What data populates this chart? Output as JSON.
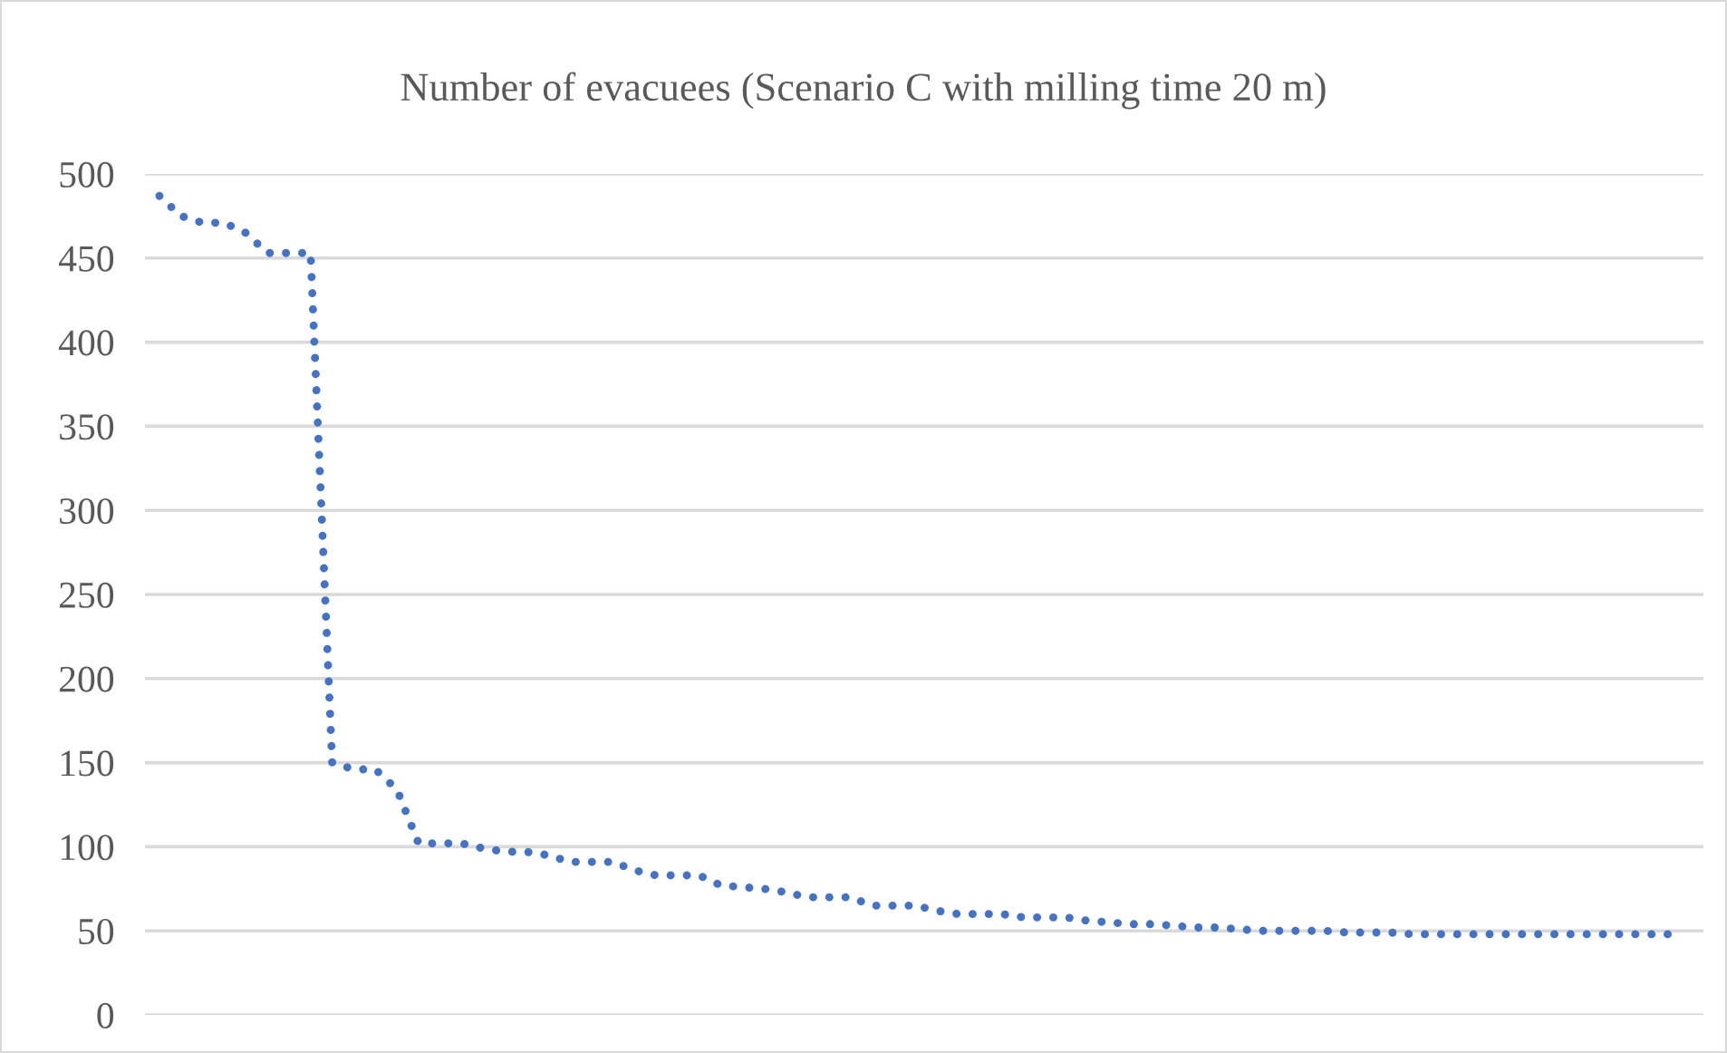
{
  "chart_data": {
    "type": "line",
    "title": "Number of evacuees (Scenario C with milling time 20 m)",
    "categories": [
      null,
      null,
      null,
      null,
      null,
      null,
      null,
      null,
      null,
      null,
      null,
      null,
      null,
      null,
      null,
      null,
      null,
      null,
      null,
      null,
      null,
      null,
      null,
      null,
      null,
      null,
      null,
      null,
      null,
      null,
      null,
      null,
      null,
      null,
      null,
      null,
      null,
      null,
      null,
      null,
      null,
      null,
      null,
      null,
      null,
      null,
      null,
      null,
      null,
      null,
      null,
      null,
      null,
      null,
      null,
      null,
      null,
      null,
      null,
      null,
      null,
      null,
      null,
      null,
      null,
      null,
      null,
      null,
      null,
      null,
      null
    ],
    "series": [
      {
        "color": "#4472c4",
        "values": [
          487,
          475,
          471,
          471,
          465,
          453,
          453,
          453,
          150,
          146,
          146,
          134,
          102,
          102,
          102,
          99,
          97,
          97,
          95,
          91,
          91,
          91,
          86,
          83,
          83,
          83,
          77,
          76,
          75,
          73,
          70,
          70,
          70,
          65,
          65,
          65,
          62,
          60,
          60,
          60,
          58,
          58,
          58,
          56,
          55,
          54,
          54,
          53,
          52,
          52,
          51,
          50,
          50,
          50,
          50,
          49,
          49,
          49,
          48,
          48,
          48,
          48,
          48,
          48,
          48,
          48,
          48,
          48,
          48,
          48,
          48
        ]
      }
    ],
    "ylim": [
      0,
      500
    ],
    "yticks": [
      0,
      50,
      100,
      150,
      200,
      250,
      300,
      350,
      400,
      450,
      500
    ],
    "grid": "y",
    "line_style": "dotted",
    "legend": false
  }
}
